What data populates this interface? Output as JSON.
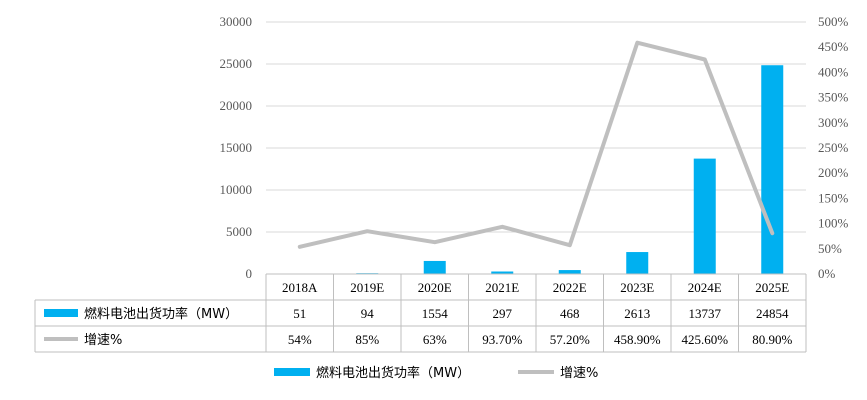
{
  "chart_data": {
    "type": "bar",
    "categories": [
      "2018A",
      "2019E",
      "2020E",
      "2021E",
      "2022E",
      "2023E",
      "2024E",
      "2025E"
    ],
    "series": [
      {
        "name": "燃料电池出货功率（MW）",
        "kind": "bar",
        "axis": "left",
        "color": "#00B0F0",
        "values": [
          51,
          94,
          1554,
          297,
          468,
          2613,
          13737,
          24854
        ]
      },
      {
        "name": "增速%",
        "kind": "line",
        "axis": "right",
        "color": "#BFBFBF",
        "values": [
          54,
          85,
          63,
          93.7,
          57.2,
          458.9,
          425.6,
          80.9
        ]
      }
    ],
    "table": {
      "rows": [
        {
          "label": "燃料电池出货功率（MW）",
          "cells": [
            "51",
            "94",
            "1554",
            "297",
            "468",
            "2613",
            "13737",
            "24854"
          ]
        },
        {
          "label": "增速%",
          "cells": [
            "54%",
            "85%",
            "63%",
            "93.70%",
            "57.20%",
            "458.90%",
            "425.60%",
            "80.90%"
          ]
        }
      ]
    },
    "y_left": {
      "ylim": [
        0,
        30000
      ],
      "ticks": [
        "0",
        "5000",
        "10000",
        "15000",
        "20000",
        "25000",
        "30000"
      ]
    },
    "y_right": {
      "ylim": [
        0,
        500
      ],
      "ticks": [
        "0%",
        "50%",
        "100%",
        "150%",
        "200%",
        "250%",
        "300%",
        "350%",
        "400%",
        "450%",
        "500%"
      ]
    },
    "grid": true,
    "legend": {
      "position": "bottom",
      "items": [
        "燃料电池出货功率（MW）",
        "增速%"
      ]
    }
  }
}
